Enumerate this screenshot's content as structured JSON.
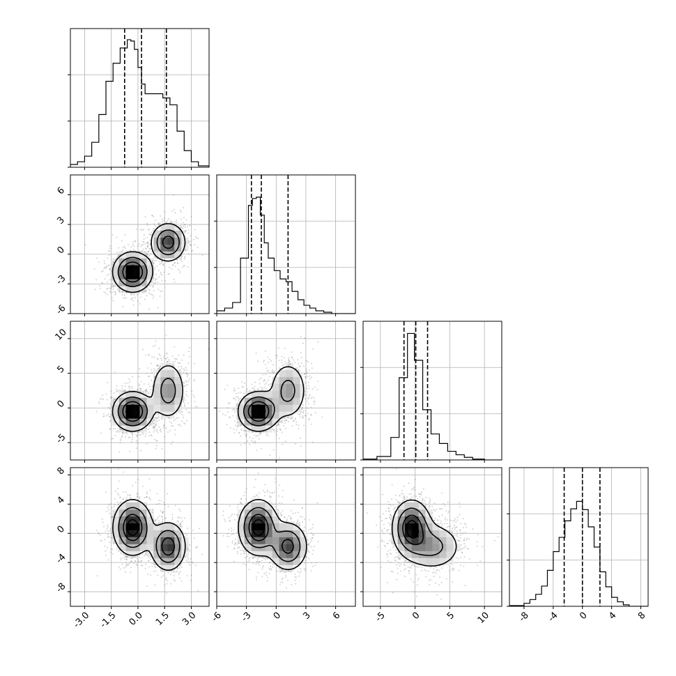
{
  "chart_data": {
    "type": "corner",
    "grid": true,
    "variables": [
      {
        "id": "p0",
        "range": [
          -3.8,
          4.0
        ],
        "ticks": [
          -3.0,
          -1.5,
          0.0,
          1.5,
          3.0
        ],
        "tick_labels": [
          "-3.0",
          "-1.5",
          "0.0",
          "1.5",
          "3.0"
        ],
        "quantiles": [
          -0.75,
          0.2,
          1.6
        ],
        "histogram": {
          "edges": [
            -3.8,
            -3.4,
            -3.0,
            -2.6,
            -2.2,
            -1.8,
            -1.4,
            -1.0,
            -0.6,
            -0.4,
            -0.2,
            0.0,
            0.2,
            0.4,
            0.6,
            0.8,
            1.0,
            1.4,
            1.8,
            2.2,
            2.6,
            3.0,
            3.4,
            4.0
          ],
          "counts": [
            2,
            4,
            8,
            18,
            38,
            62,
            75,
            86,
            92,
            91,
            85,
            72,
            60,
            53,
            53,
            53,
            53,
            50,
            45,
            26,
            12,
            4,
            1
          ]
        },
        "ymax": 100
      },
      {
        "id": "p1",
        "range": [
          -6,
          8
        ],
        "ticks": [
          -6,
          -3,
          0,
          3,
          6
        ],
        "tick_labels": [
          "-6",
          "-3",
          "0",
          "3",
          "6"
        ],
        "quantiles": [
          -2.5,
          -1.5,
          1.2
        ],
        "histogram": {
          "edges": [
            -6,
            -5.2,
            -4.4,
            -3.6,
            -2.8,
            -2.4,
            -2.0,
            -1.6,
            -1.2,
            -0.8,
            -0.2,
            0.4,
            1.0,
            1.6,
            2.2,
            2.8,
            3.4,
            4.0,
            4.8,
            5.6,
            8
          ],
          "counts": [
            2,
            4,
            8,
            40,
            78,
            83,
            84,
            71,
            51,
            40,
            31,
            25,
            23,
            16,
            10,
            6,
            4,
            2,
            1,
            0
          ]
        },
        "ymax": 100
      },
      {
        "id": "p2",
        "range": [
          -7.5,
          12.5
        ],
        "ticks": [
          -5,
          0,
          5,
          10
        ],
        "tick_labels": [
          "-5",
          "0",
          "5",
          "10"
        ],
        "quantiles": [
          -1.6,
          0.1,
          1.8
        ],
        "histogram": {
          "edges": [
            -7.5,
            -5.5,
            -3.5,
            -2.3,
            -1.1,
            -0.1,
            1.1,
            2.3,
            3.5,
            4.7,
            5.9,
            7.1,
            8.3,
            10,
            12.5
          ],
          "counts": [
            1,
            4,
            26,
            95,
            146,
            115,
            58,
            30,
            19,
            10,
            6,
            3,
            1,
            0
          ]
        },
        "ymax": 160
      },
      {
        "id": "p3",
        "range": [
          -10,
          9
        ],
        "ticks": [
          -8,
          -4,
          0,
          4,
          8
        ],
        "tick_labels": [
          "-8",
          "-4",
          "0",
          "4",
          "8"
        ],
        "quantiles": [
          -2.5,
          0.0,
          2.4
        ],
        "histogram": {
          "edges": [
            -10,
            -8,
            -7.2,
            -6.4,
            -5.6,
            -4.8,
            -4,
            -3.2,
            -2.4,
            -1.6,
            -0.8,
            0,
            0.8,
            1.6,
            2.4,
            3.2,
            4,
            4.8,
            5.6,
            6.4,
            9
          ],
          "counts": [
            1,
            4,
            9,
            16,
            27,
            48,
            73,
            92,
            114,
            130,
            140,
            129,
            106,
            79,
            46,
            26,
            12,
            6,
            2,
            0
          ]
        },
        "ymax": 185
      }
    ],
    "modes": [
      {
        "weight": 0.6,
        "mean": [
          -0.3,
          -1.8,
          -0.5,
          0.8
        ],
        "sd": [
          0.55,
          1.0,
          1.4,
          1.9
        ]
      },
      {
        "weight": 0.4,
        "mean": [
          1.7,
          1.2,
          2.5,
          -1.8
        ],
        "sd": [
          0.5,
          1.0,
          2.2,
          1.7
        ]
      }
    ]
  }
}
